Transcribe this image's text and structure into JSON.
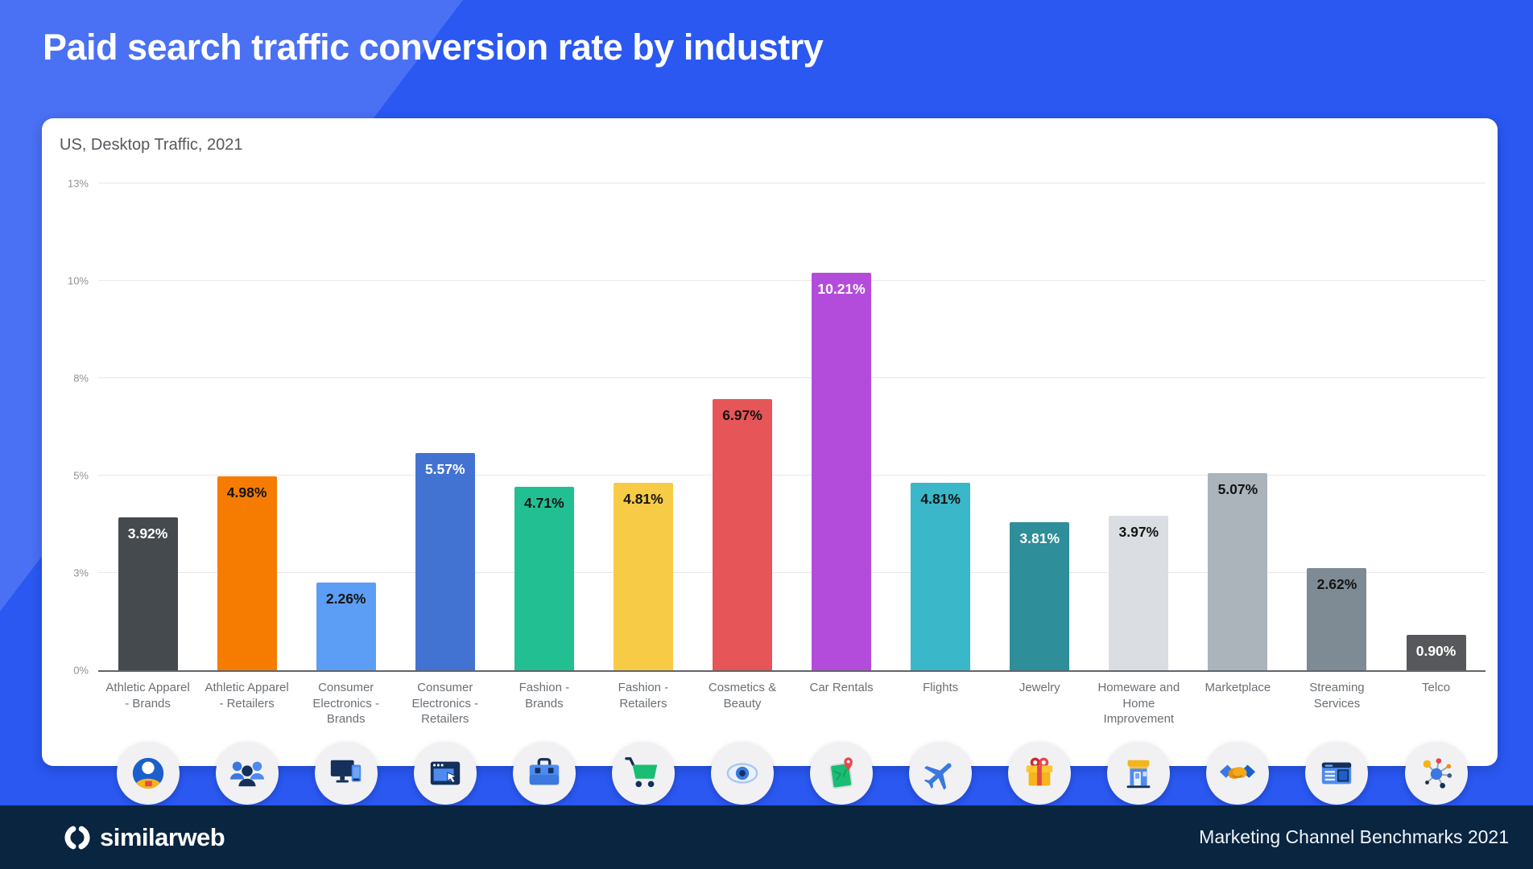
{
  "page": {
    "background": "#2A58F1",
    "accent_light": "#4A70F4"
  },
  "header": {
    "title": "Paid search traffic conversion rate by industry"
  },
  "card": {
    "subtitle": "US, Desktop Traffic, 2021"
  },
  "chart_data": {
    "type": "bar",
    "title": "Paid search traffic conversion rate by industry",
    "subtitle": "US, Desktop Traffic, 2021",
    "xlabel": "",
    "ylabel": "",
    "ylim": [
      0,
      12.5
    ],
    "grid": true,
    "yticks": [
      {
        "value": 0,
        "label": "0%"
      },
      {
        "value": 2.5,
        "label": "3%"
      },
      {
        "value": 5,
        "label": "5%"
      },
      {
        "value": 7.5,
        "label": "8%"
      },
      {
        "value": 10,
        "label": "10%"
      },
      {
        "value": 12.5,
        "label": "13%"
      }
    ],
    "categories": [
      "Athletic Apparel - Brands",
      "Athletic Apparel - Retailers",
      "Consumer Electronics - Brands",
      "Consumer Electronics - Retailers",
      "Fashion - Brands",
      "Fashion - Retailers",
      "Cosmetics & Beauty",
      "Car Rentals",
      "Flights",
      "Jewelry",
      "Homeware and Home Improvement",
      "Marketplace",
      "Streaming Services",
      "Telco"
    ],
    "values": [
      3.92,
      4.98,
      2.26,
      5.57,
      4.71,
      4.81,
      6.97,
      10.21,
      4.81,
      3.81,
      3.97,
      5.07,
      2.62,
      0.9
    ],
    "value_labels": [
      "3.92%",
      "4.98%",
      "2.26%",
      "5.57%",
      "4.71%",
      "4.81%",
      "6.97%",
      "10.21%",
      "4.81%",
      "3.81%",
      "3.97%",
      "5.07%",
      "2.62%",
      "0.90%"
    ],
    "bar_colors": [
      "#454A4E",
      "#F57C00",
      "#5C9DF5",
      "#4373D2",
      "#22BF92",
      "#F8CB46",
      "#E65557",
      "#B44CDB",
      "#3AB7C8",
      "#2E8E99",
      "#DADEE2",
      "#ABB4BB",
      "#7E8A94",
      "#56585B"
    ],
    "label_colors": [
      "#FFFFFF",
      "#141414",
      "#141414",
      "#FFFFFF",
      "#141414",
      "#141414",
      "#141414",
      "#FFFFFF",
      "#141414",
      "#FFFFFF",
      "#141414",
      "#141414",
      "#141414",
      "#FFFFFF"
    ],
    "icons": [
      "person-avatar-icon",
      "people-group-icon",
      "desktop-devices-icon",
      "browser-cursor-icon",
      "briefcase-icon",
      "shopping-cart-icon",
      "eye-icon",
      "map-pin-icon",
      "airplane-icon",
      "gift-icon",
      "storefront-icon",
      "handshake-icon",
      "media-player-icon",
      "network-hub-icon"
    ]
  },
  "footer": {
    "background": "#092540",
    "logo_text": "similarweb",
    "right_text": "Marketing Channel Benchmarks 2021"
  }
}
